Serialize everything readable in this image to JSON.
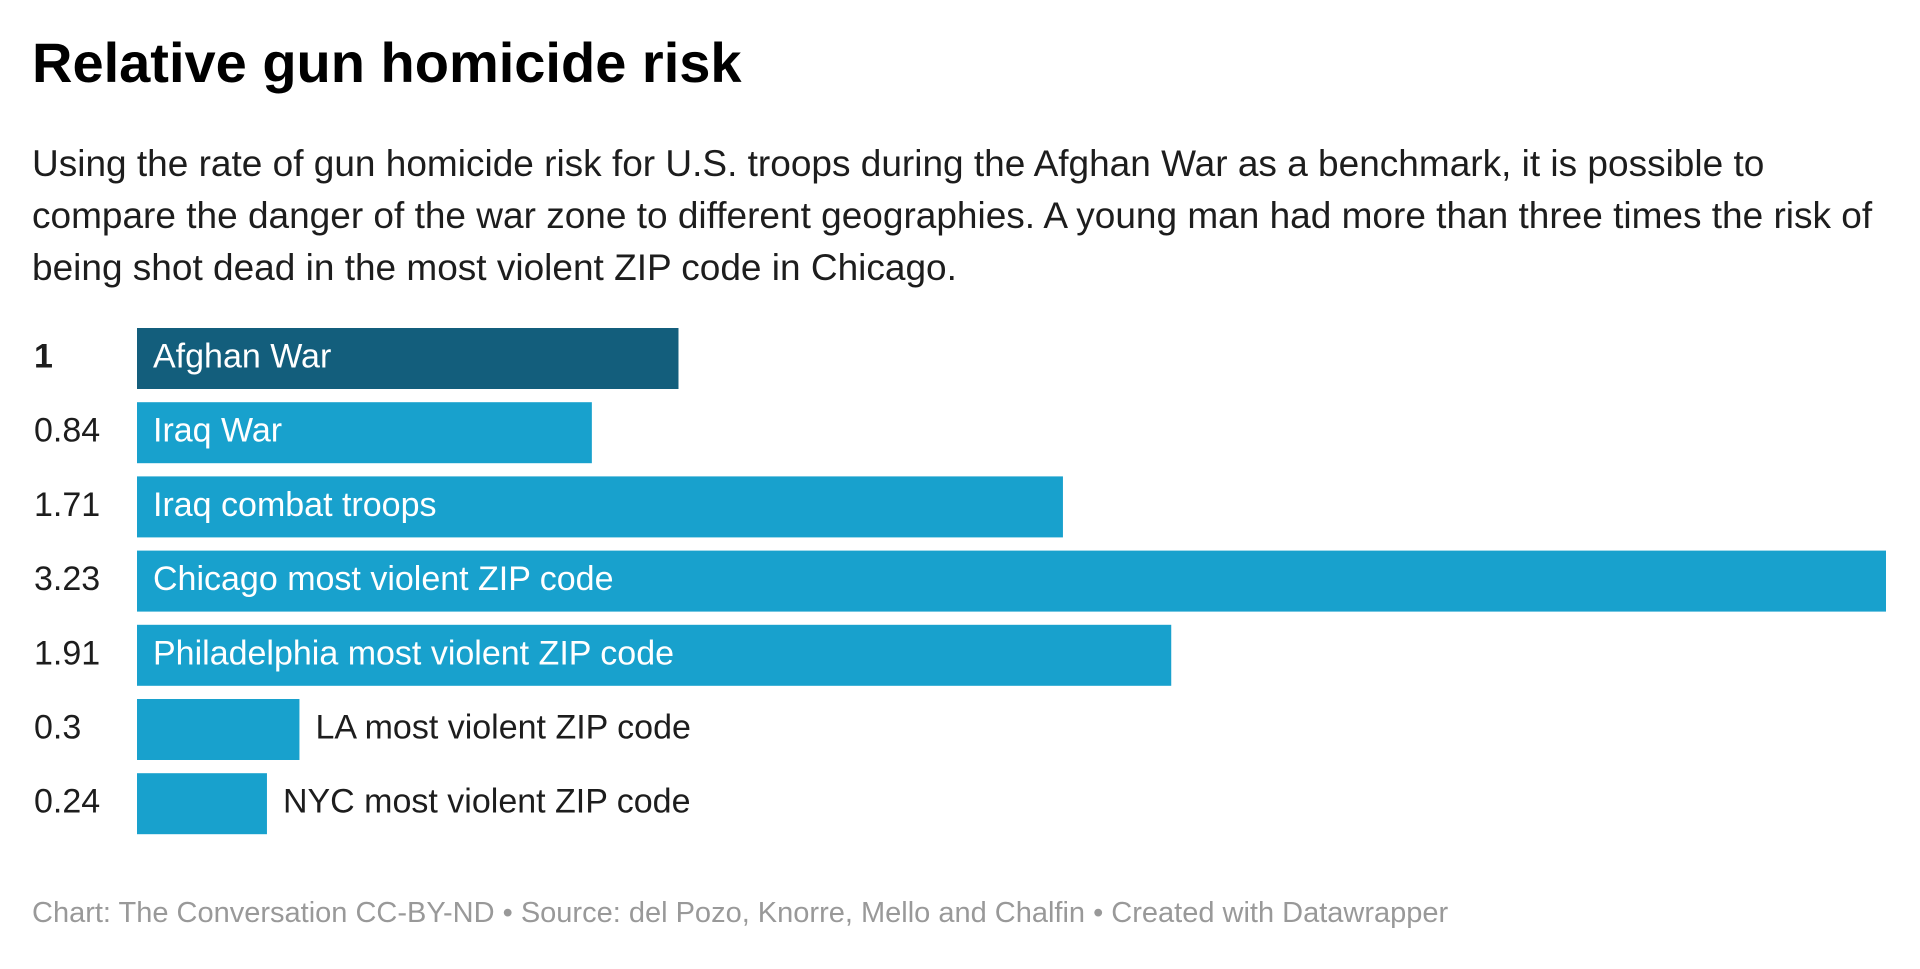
{
  "chart_data": {
    "type": "bar",
    "title": "Relative gun homicide risk",
    "subtitle": "Using the rate of gun homicide risk for U.S. troops during the Afghan War as a benchmark, it is possible to compare the danger of the war zone to different geographies. A young man had more than three times the risk of being shot dead in the most violent ZIP code in Chicago.",
    "categories": [
      "Afghan War",
      "Iraq War",
      "Iraq combat troops",
      "Chicago most violent ZIP code",
      "Philadelphia most violent ZIP code",
      "LA most violent ZIP code",
      "NYC most violent ZIP code"
    ],
    "values": [
      1,
      0.84,
      1.71,
      3.23,
      1.91,
      0.3,
      0.24
    ],
    "colors": [
      "#135e7c",
      "#18a1cd",
      "#18a1cd",
      "#18a1cd",
      "#18a1cd",
      "#18a1cd",
      "#18a1cd"
    ],
    "footer": "Chart: The Conversation CC-BY-ND • Source: del Pozo, Knorre, Mello and Chalfin • Created with Datawrapper"
  }
}
